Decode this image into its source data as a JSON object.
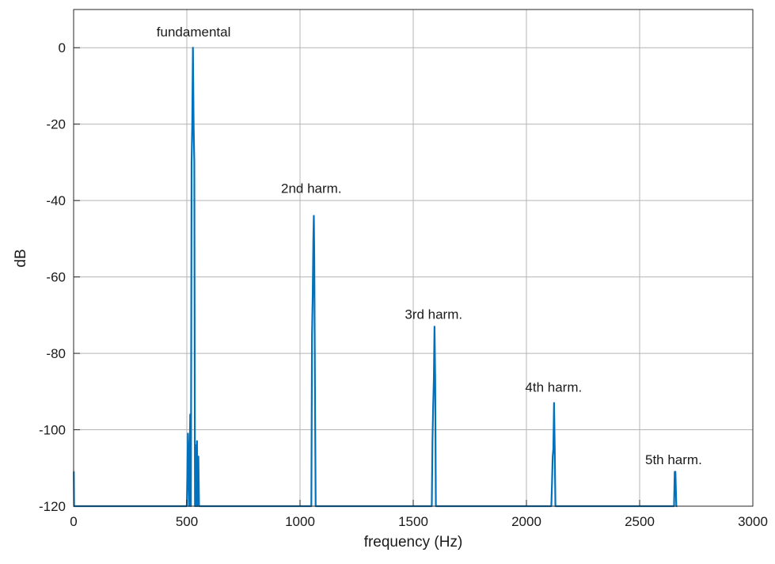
{
  "chart_data": {
    "type": "line",
    "title": "",
    "xlabel": "frequency (Hz)",
    "ylabel": "dB",
    "xlim": [
      0,
      3000
    ],
    "ylim": [
      -120,
      10
    ],
    "xticks": [
      0,
      500,
      1000,
      1500,
      2000,
      2500,
      3000
    ],
    "xtick_labels": [
      "0",
      "500",
      "1000",
      "1500",
      "2000",
      "2500",
      "3000"
    ],
    "yticks": [
      0,
      -20,
      -40,
      -60,
      -80,
      -100,
      -120
    ],
    "ytick_labels": [
      "0",
      "-20",
      "-40",
      "-60",
      "-80",
      "-100",
      "-120"
    ],
    "grid": true,
    "line_color": "#0072BD",
    "series": [
      {
        "x": [
          0,
          0.8,
          2,
          4,
          500,
          505,
          510,
          515,
          518,
          521,
          524,
          527,
          530,
          533,
          536,
          539,
          542,
          545,
          548,
          551,
          554,
          557,
          560,
          563,
          1040,
          1045,
          1050,
          1053,
          1056,
          1059,
          1061,
          1063,
          1066,
          1069,
          1072,
          1076,
          1080,
          1578,
          1582,
          1585,
          1588,
          1591,
          1594,
          1597,
          1600,
          1603,
          1607,
          1611,
          2105,
          2110,
          2113,
          2116,
          2119,
          2122,
          2125,
          2128,
          2131,
          2135,
          2648,
          2652,
          2655,
          2658,
          2662,
          2666
        ],
        "y": [
          -111,
          -111,
          -120,
          -120,
          -120,
          -101,
          -120,
          -96,
          -120,
          -30,
          -20,
          0,
          -20,
          -30,
          -120,
          -104,
          -120,
          -103,
          -120,
          -107,
          -120,
          -120,
          -120,
          -120,
          -120,
          -120,
          -120,
          -75,
          -65,
          -50,
          -44,
          -55,
          -89,
          -120,
          -120,
          -120,
          -120,
          -120,
          -120,
          -103,
          -94,
          -87,
          -73,
          -87,
          -120,
          -120,
          -120,
          -120,
          -120,
          -120,
          -114,
          -107,
          -105,
          -93,
          -105,
          -120,
          -120,
          -120,
          -120,
          -120,
          -111,
          -111,
          -120,
          -120
        ]
      }
    ],
    "annotations": [
      {
        "text": "fundamental",
        "x": 530,
        "y": 3
      },
      {
        "text": "2nd harm.",
        "x": 1050,
        "y": -38
      },
      {
        "text": "3rd harm.",
        "x": 1590,
        "y": -71
      },
      {
        "text": "4th harm.",
        "x": 2120,
        "y": -90
      },
      {
        "text": "5th harm.",
        "x": 2650,
        "y": -109
      }
    ]
  }
}
